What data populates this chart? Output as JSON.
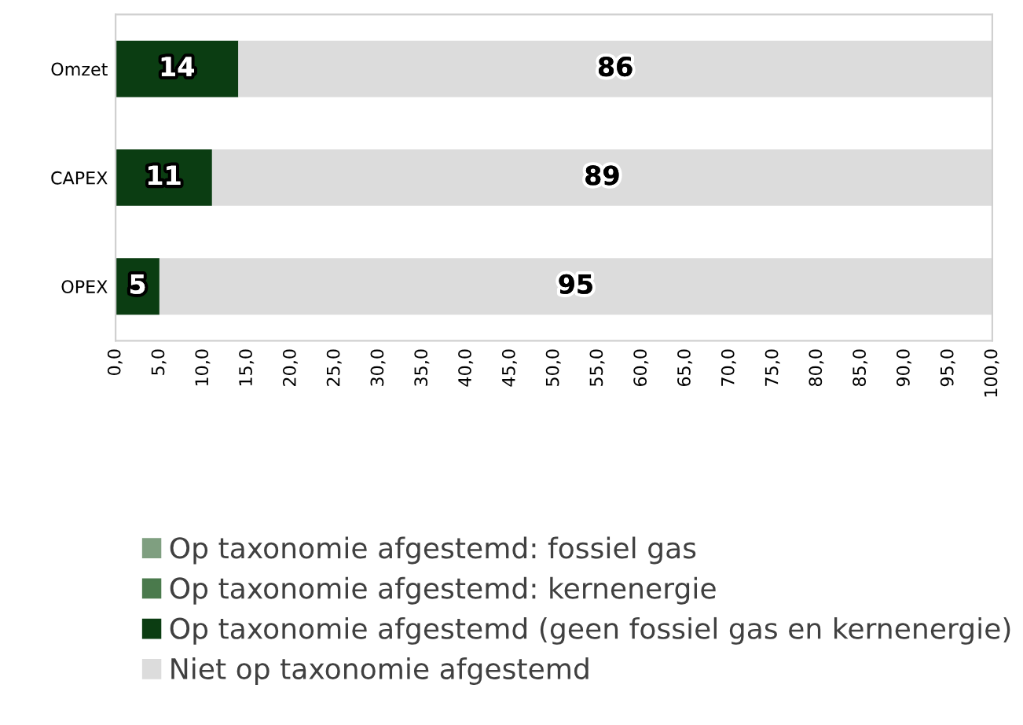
{
  "chart_data": {
    "type": "bar",
    "orientation": "horizontal",
    "stacked": true,
    "categories": [
      "Omzet",
      "CAPEX",
      "OPEX"
    ],
    "series": [
      {
        "name": "Op taxonomie afgestemd: fossiel gas",
        "color": "#7f9f80",
        "values": [
          0,
          0,
          0
        ],
        "value_labels": [
          null,
          null,
          null
        ]
      },
      {
        "name": "Op taxonomie afgestemd: kernenergie",
        "color": "#4a7a4c",
        "values": [
          0,
          0,
          0
        ],
        "value_labels": [
          null,
          null,
          null
        ]
      },
      {
        "name": "Op taxonomie afgestemd (geen fossiel gas en kernenergie)",
        "color": "#0b3d12",
        "values": [
          14,
          11,
          5
        ],
        "value_labels": [
          "14",
          "11",
          "5"
        ]
      },
      {
        "name": "Niet op taxonomie afgestemd",
        "color": "#dcdcdc",
        "values": [
          86,
          89,
          95
        ],
        "value_labels": [
          "86",
          "89",
          "95"
        ]
      }
    ],
    "xlim": [
      0,
      100
    ],
    "xticks": [
      {
        "value": 0,
        "label": "0,0"
      },
      {
        "value": 5,
        "label": "5,0"
      },
      {
        "value": 10,
        "label": "10,0"
      },
      {
        "value": 15,
        "label": "15,0"
      },
      {
        "value": 20,
        "label": "20,0"
      },
      {
        "value": 25,
        "label": "25,0"
      },
      {
        "value": 30,
        "label": "30,0"
      },
      {
        "value": 35,
        "label": "35,0"
      },
      {
        "value": 40,
        "label": "40,0"
      },
      {
        "value": 45,
        "label": "45,0"
      },
      {
        "value": 50,
        "label": "50,0"
      },
      {
        "value": 55,
        "label": "55,0"
      },
      {
        "value": 60,
        "label": "60,0"
      },
      {
        "value": 65,
        "label": "65,0"
      },
      {
        "value": 70,
        "label": "70,0"
      },
      {
        "value": 75,
        "label": "75,0"
      },
      {
        "value": 80,
        "label": "80,0"
      },
      {
        "value": 85,
        "label": "85,0"
      },
      {
        "value": 90,
        "label": "90,0"
      },
      {
        "value": 95,
        "label": "95,0"
      },
      {
        "value": 100,
        "label": "100,0"
      }
    ],
    "grid": false,
    "legend": "bottom"
  }
}
